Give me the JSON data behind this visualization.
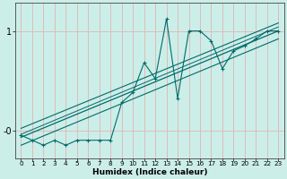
{
  "title": "",
  "xlabel": "Humidex (Indice chaleur)",
  "ylabel": "",
  "bg_color": "#cceee8",
  "grid_color": "#ddbcbc",
  "line_color": "#006b6b",
  "xlim": [
    -0.5,
    23.5
  ],
  "ylim": [
    -0.28,
    1.28
  ],
  "yticks": [
    0,
    1
  ],
  "ytick_labels": [
    "-0",
    "1"
  ],
  "xticks": [
    0,
    1,
    2,
    3,
    4,
    5,
    6,
    7,
    8,
    9,
    10,
    11,
    12,
    13,
    14,
    15,
    16,
    17,
    18,
    19,
    20,
    21,
    22,
    23
  ],
  "data_x": [
    0,
    1,
    2,
    3,
    4,
    5,
    6,
    7,
    8,
    9,
    10,
    11,
    12,
    13,
    14,
    15,
    16,
    17,
    18,
    19,
    20,
    21,
    22,
    23
  ],
  "data_y": [
    -0.05,
    -0.1,
    -0.15,
    -0.1,
    -0.15,
    -0.1,
    -0.1,
    -0.1,
    -0.1,
    0.28,
    0.38,
    0.68,
    0.52,
    1.12,
    0.32,
    1.0,
    1.0,
    0.9,
    0.62,
    0.8,
    0.85,
    0.92,
    1.0,
    1.0
  ],
  "reg_line": {
    "x0": 0,
    "y0": -0.07,
    "x1": 23,
    "y1": 1.0
  },
  "upper_line": {
    "x0": 0,
    "y0": 0.02,
    "x1": 23,
    "y1": 1.08
  },
  "lower_line": {
    "x0": 0,
    "y0": -0.15,
    "x1": 23,
    "y1": 0.92
  },
  "extra_line": {
    "x0": 0,
    "y0": -0.04,
    "x1": 23,
    "y1": 1.04
  }
}
